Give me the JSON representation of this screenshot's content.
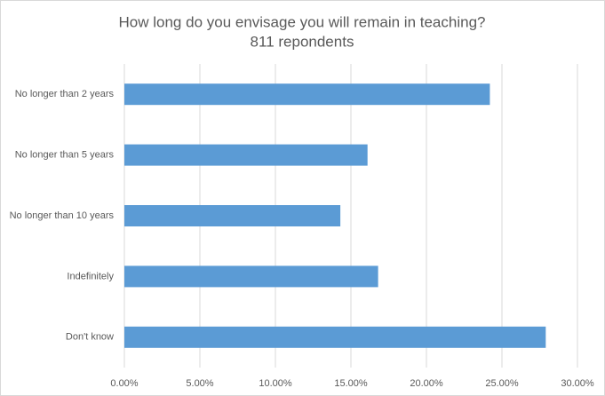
{
  "chart_data": {
    "type": "bar",
    "orientation": "horizontal",
    "title": "How long do you envisage you will remain in teaching?",
    "subtitle": "811 repondents",
    "categories": [
      "No longer than 2 years",
      "No longer than 5 years",
      "No longer than 10 years",
      "Indefinitely",
      "Don't know"
    ],
    "values": [
      24.2,
      16.1,
      14.3,
      16.8,
      27.9
    ],
    "color": "#5b9bd5",
    "xlim": [
      0,
      30
    ],
    "xticks": [
      {
        "value": 0,
        "label": "0.00%"
      },
      {
        "value": 5,
        "label": "5.00%"
      },
      {
        "value": 10,
        "label": "10.00%"
      },
      {
        "value": 15,
        "label": "15.00%"
      },
      {
        "value": 20,
        "label": "20.00%"
      },
      {
        "value": 25,
        "label": "25.00%"
      },
      {
        "value": 30,
        "label": "30.00%"
      }
    ],
    "grid": true
  }
}
